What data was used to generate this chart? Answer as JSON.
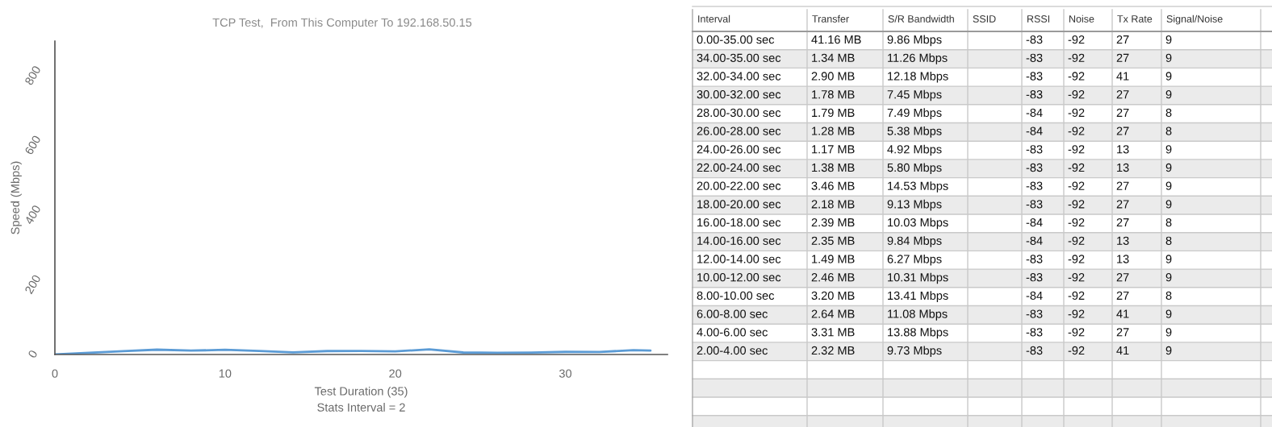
{
  "chart_data": [
    {
      "type": "line",
      "title": "TCP Test,  From This Computer To 192.168.50.15",
      "xlabel": "Test Duration (35)",
      "ylabel": "Speed (Mbps)",
      "annotations": [
        "Stats Interval = 2"
      ],
      "x": [
        0,
        4,
        6,
        8,
        10,
        12,
        14,
        16,
        18,
        20,
        22,
        24,
        26,
        28,
        30,
        32,
        34,
        35
      ],
      "series": [
        {
          "color": "#5b9bd5",
          "values": [
            0,
            9.73,
            13.88,
            11.08,
            13.41,
            10.31,
            6.27,
            9.84,
            10.03,
            9.13,
            14.53,
            5.8,
            4.92,
            5.38,
            7.49,
            7.45,
            12.18,
            11.26
          ]
        }
      ],
      "xlim": [
        0,
        36
      ],
      "xticks": [
        0,
        10,
        20,
        30
      ],
      "ylim": [
        0,
        900
      ],
      "yticks": [
        0,
        200,
        400,
        600,
        800
      ],
      "marker": "none",
      "line_style": "solid"
    },
    {
      "type": "other",
      "categories": [
        "Interval",
        "Transfer",
        "S/R Bandwidth",
        "SSID",
        "RSSI",
        "Noise",
        "Tx Rate",
        "Signal/Noise"
      ],
      "annotations": [
        "0.00-35.00 sec",
        "41.16 MB",
        "9.86 Mbps",
        null,
        "-83",
        "-92",
        "27",
        "9",
        "34.00-35.00 sec",
        "1.34 MB",
        "11.26 Mbps",
        null,
        "-83",
        "-92",
        "27",
        "9",
        "32.00-34.00 sec",
        "2.90 MB",
        "12.18 Mbps",
        null,
        "-83",
        "-92",
        "41",
        "9",
        "30.00-32.00 sec",
        "1.78 MB",
        "7.45 Mbps",
        null,
        "-83",
        "-92",
        "27",
        "9",
        "28.00-30.00 sec",
        "1.79 MB",
        "7.49 Mbps",
        null,
        "-84",
        "-92",
        "27",
        "8",
        "26.00-28.00 sec",
        "1.28 MB",
        "5.38 Mbps",
        null,
        "-84",
        "-92",
        "27",
        "8",
        "24.00-26.00 sec",
        "1.17 MB",
        "4.92 Mbps",
        null,
        "-83",
        "-92",
        "13",
        "9",
        "22.00-24.00 sec",
        "1.38 MB",
        "5.80 Mbps",
        null,
        "-83",
        "-92",
        "13",
        "9",
        "20.00-22.00 sec",
        "3.46 MB",
        "14.53 Mbps",
        null,
        "-83",
        "-92",
        "27",
        "9",
        "18.00-20.00 sec",
        "2.18 MB",
        "9.13 Mbps",
        null,
        "-83",
        "-92",
        "27",
        "9",
        "16.00-18.00 sec",
        "2.39 MB",
        "10.03 Mbps",
        null,
        "-84",
        "-92",
        "27",
        "8",
        "14.00-16.00 sec",
        "2.35 MB",
        "9.84 Mbps",
        null,
        "-84",
        "-92",
        "13",
        "8",
        "12.00-14.00 sec",
        "1.49 MB",
        "6.27 Mbps",
        null,
        "-83",
        "-92",
        "13",
        "9",
        "10.00-12.00 sec",
        "2.46 MB",
        "10.31 Mbps",
        null,
        "-83",
        "-92",
        "27",
        "9",
        "8.00-10.00 sec",
        "3.20 MB",
        "13.41 Mbps",
        null,
        "-84",
        "-92",
        "27",
        "8",
        "6.00-8.00 sec",
        "2.64 MB",
        "11.08 Mbps",
        null,
        "-83",
        "-92",
        "41",
        "9",
        "4.00-6.00 sec",
        "3.31 MB",
        "13.88 Mbps",
        null,
        "-83",
        "-92",
        "27",
        "9",
        "2.00-4.00 sec",
        "2.32 MB",
        "9.73 Mbps",
        null,
        "-83",
        "-92",
        "41",
        "9"
      ]
    }
  ]
}
